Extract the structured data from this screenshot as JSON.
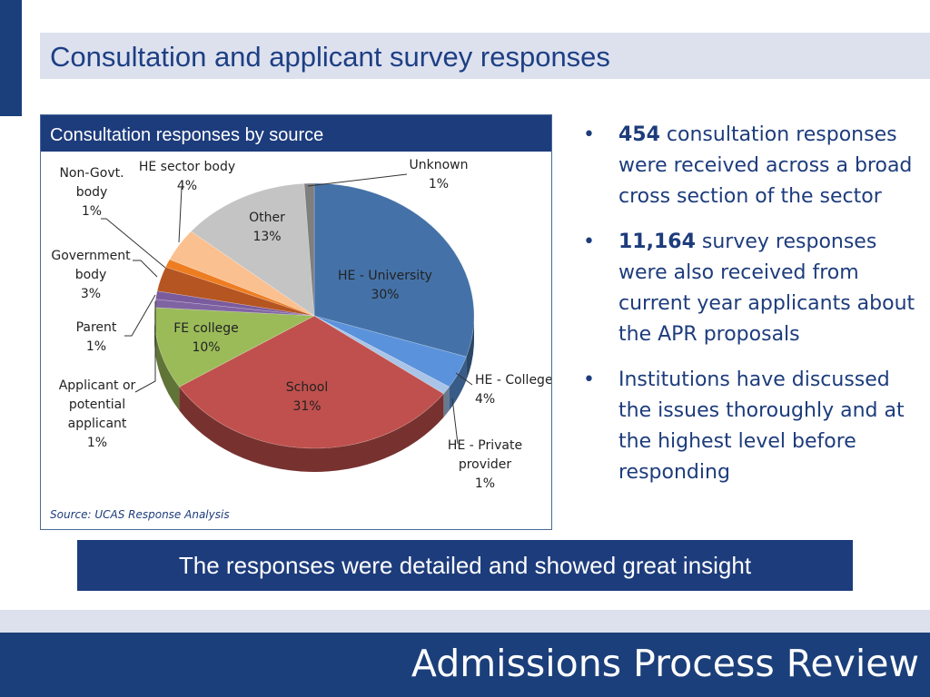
{
  "slide": {
    "title": "Consultation and applicant survey responses",
    "banner": "The responses were detailed and showed great insight",
    "footer": "Admissions Process Review"
  },
  "bullets": [
    {
      "bold": "454",
      "text": " consultation responses were received across a broad cross section of the sector"
    },
    {
      "bold": "11,164",
      "text": " survey responses were also received from current year applicants about the APR proposals"
    },
    {
      "bold": "",
      "text": "Institutions have discussed the issues thoroughly and at the highest level before responding"
    }
  ],
  "bullet_symbol": "•",
  "chart_data": {
    "type": "pie",
    "title": "Consultation responses by source",
    "source": "Source: UCAS Response Analysis",
    "unit": "%",
    "slices": [
      {
        "label": "HE - University",
        "value": 30,
        "color": "#4472a8"
      },
      {
        "label": "HE - College",
        "value": 4,
        "color": "#5b92dc"
      },
      {
        "label": "HE - Private provider",
        "value": 1,
        "color": "#a9c4e6"
      },
      {
        "label": "School",
        "value": 31,
        "color": "#c0504d"
      },
      {
        "label": "FE college",
        "value": 10,
        "color": "#9bbb59"
      },
      {
        "label": "Applicant or potential applicant",
        "value": 1,
        "color": "#8064a2"
      },
      {
        "label": "Parent",
        "value": 1,
        "color": "#7a5b9e"
      },
      {
        "label": "Government body",
        "value": 3,
        "color": "#b55522"
      },
      {
        "label": "Non-Govt. body",
        "value": 1,
        "color": "#ee7d22"
      },
      {
        "label": "HE sector body",
        "value": 4,
        "color": "#fbc08f"
      },
      {
        "label": "Other",
        "value": 13,
        "color": "#c4c4c4"
      },
      {
        "label": "Unknown",
        "value": 1,
        "color": "#7f7f7f"
      }
    ],
    "labels": [
      {
        "lines": [
          "HE - University",
          "30%"
        ]
      },
      {
        "lines": [
          "HE - College",
          "4%"
        ]
      },
      {
        "lines": [
          "HE - Private",
          "provider",
          "1%"
        ]
      },
      {
        "lines": [
          "School",
          "31%"
        ]
      },
      {
        "lines": [
          "FE college",
          "10%"
        ]
      },
      {
        "lines": [
          "Applicant or",
          "potential",
          "applicant",
          "1%"
        ]
      },
      {
        "lines": [
          "Parent",
          "1%"
        ]
      },
      {
        "lines": [
          "Government",
          "body",
          "3%"
        ]
      },
      {
        "lines": [
          "Non-Govt.",
          "body",
          "1%"
        ]
      },
      {
        "lines": [
          "HE sector body",
          "4%"
        ]
      },
      {
        "lines": [
          "Other",
          "13%"
        ]
      },
      {
        "lines": [
          "Unknown",
          "1%"
        ]
      }
    ]
  }
}
